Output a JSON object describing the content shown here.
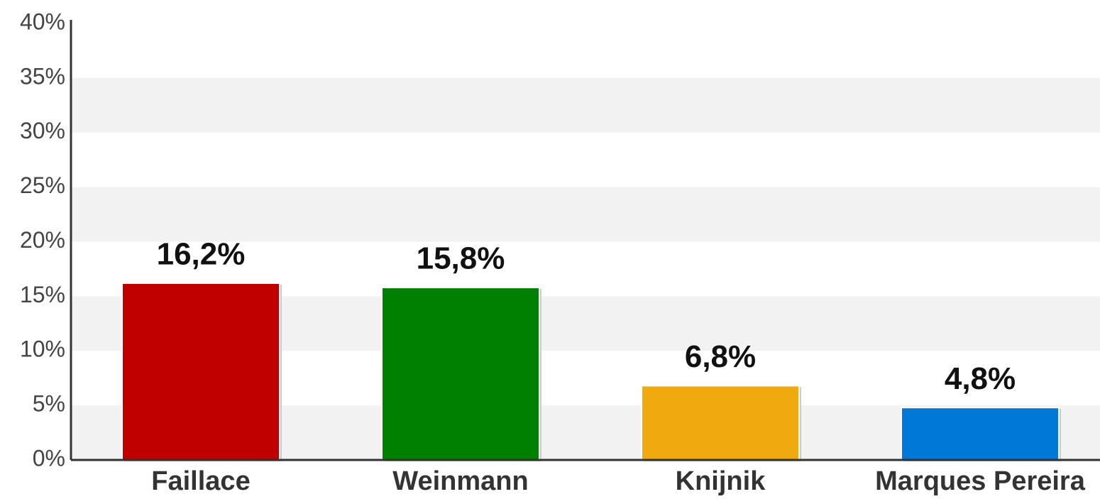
{
  "chart_data": {
    "type": "bar",
    "categories": [
      "Faillace",
      "Weinmann",
      "Knijnik",
      "Marques Pereira"
    ],
    "values": [
      16.2,
      15.8,
      6.8,
      4.8
    ],
    "value_labels": [
      "16,2%",
      "15,8%",
      "6,8%",
      "4,8%"
    ],
    "colors": [
      "#c00000",
      "#008000",
      "#f0aa10",
      "#0078d8"
    ],
    "ylim": [
      0,
      40
    ],
    "yticks": [
      {
        "value": 0,
        "label": "0%"
      },
      {
        "value": 5,
        "label": "5%"
      },
      {
        "value": 10,
        "label": "10%"
      },
      {
        "value": 15,
        "label": "15%"
      },
      {
        "value": 20,
        "label": "20%"
      },
      {
        "value": 25,
        "label": "25%"
      },
      {
        "value": 30,
        "label": "30%"
      },
      {
        "value": 35,
        "label": "35%"
      },
      {
        "value": 40,
        "label": "40%"
      }
    ],
    "grid": true
  }
}
